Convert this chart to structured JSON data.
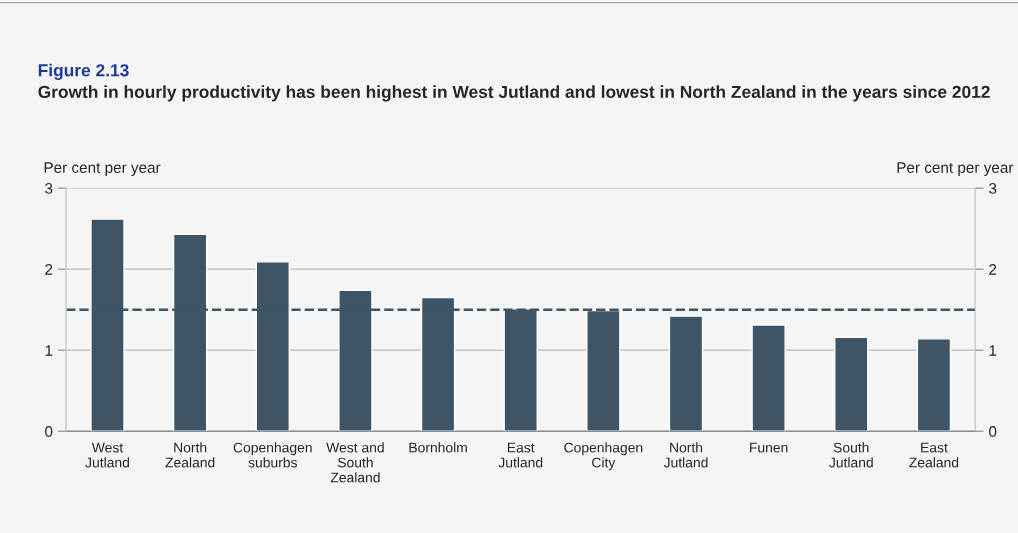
{
  "chart_data": {
    "type": "bar",
    "title": "Figure 2.13",
    "subtitle": "Growth in hourly productivity has been highest in West Jutland and lowest in North Zealand in the years since 2012",
    "ylabel": "Per cent per year",
    "y2label": "Per cent per year",
    "categories": [
      "West\nJutland",
      "North\nZealand",
      "Copenhagen\nsuburbs",
      "West and\nSouth\nZealand",
      "Bornholm",
      "East\nJutland",
      "Copenhagen\nCity",
      "North\nJutland",
      "Funen",
      "South\nJutland",
      "East\nZealand"
    ],
    "values": [
      2.62,
      2.43,
      2.09,
      1.74,
      1.65,
      1.51,
      1.49,
      1.42,
      1.31,
      1.16,
      1.14
    ],
    "color": "#3d5566",
    "ylim": [
      0,
      3
    ],
    "yticks": [
      0,
      1,
      2,
      3
    ],
    "y2lim": [
      0,
      3
    ],
    "y2ticks": [
      0,
      1,
      2,
      3
    ],
    "ref_lines": [
      {
        "axis": "y",
        "value": 1.5,
        "color": "#3d5566",
        "line_style": "dashed"
      }
    ],
    "grid": "y",
    "legend": false
  }
}
